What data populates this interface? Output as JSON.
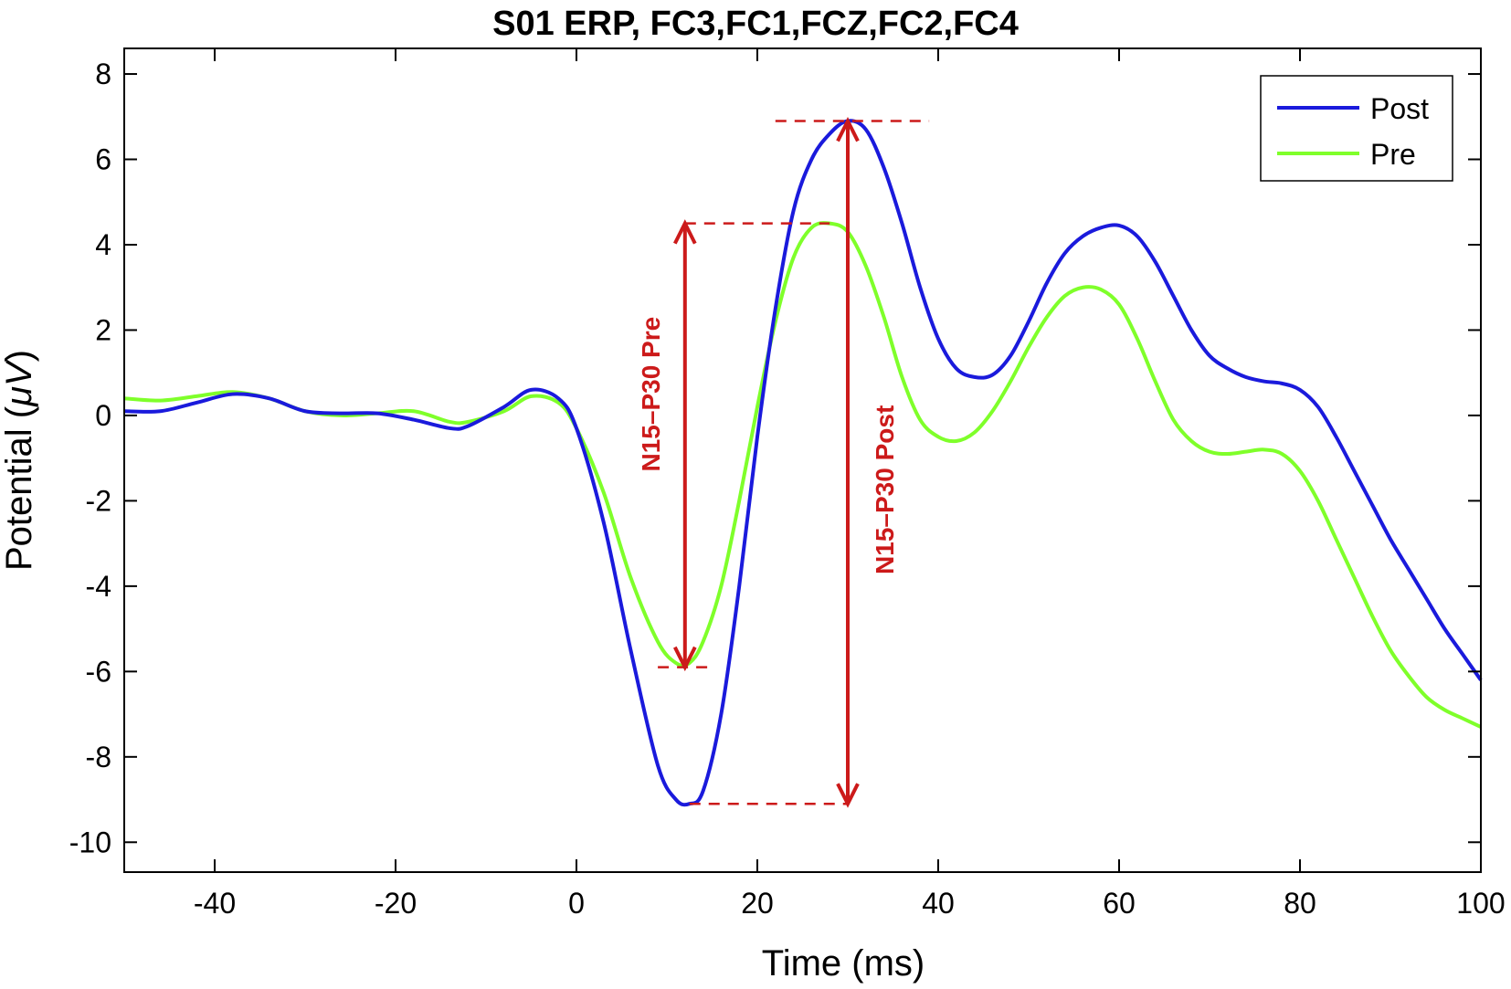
{
  "chart_data": {
    "type": "line",
    "title": "S01 ERP, FC3,FC1,FCZ,FC2,FC4",
    "xlabel": "Time (ms)",
    "ylabel_main": "Potential (",
    "ylabel_unit": "μV",
    "ylabel_close": ")",
    "xlim": [
      -50,
      100
    ],
    "ylim": [
      -10.7,
      8.6
    ],
    "xticks": [
      -40,
      -20,
      0,
      20,
      40,
      60,
      80,
      100
    ],
    "yticks": [
      8,
      6,
      4,
      2,
      0,
      -2,
      -4,
      -6,
      -8,
      -10
    ],
    "grid": false,
    "legend_position": "top-right",
    "series": [
      {
        "name": "Post",
        "color": "#1a1adc",
        "x": [
          -50,
          -46,
          -42,
          -38,
          -34,
          -30,
          -26,
          -22,
          -18,
          -14,
          -12,
          -8,
          -5,
          -2,
          0,
          3,
          6,
          9,
          11,
          12.5,
          14,
          16,
          18,
          20,
          22,
          24,
          26,
          28,
          30,
          32,
          34,
          36,
          38,
          40,
          42,
          44,
          46,
          48,
          50,
          52,
          54,
          56,
          58,
          60,
          62,
          64,
          66,
          68,
          70,
          72,
          74,
          76,
          78,
          80,
          82,
          84,
          86,
          88,
          90,
          92,
          94,
          96,
          98,
          100
        ],
        "y": [
          0.1,
          0.1,
          0.3,
          0.5,
          0.4,
          0.1,
          0.05,
          0.05,
          -0.1,
          -0.3,
          -0.25,
          0.2,
          0.6,
          0.4,
          -0.3,
          -2.5,
          -5.5,
          -8.2,
          -9.0,
          -9.1,
          -8.8,
          -7.0,
          -4.0,
          -0.5,
          2.5,
          4.8,
          6.0,
          6.6,
          6.9,
          6.7,
          5.8,
          4.5,
          3.0,
          1.8,
          1.1,
          0.9,
          0.95,
          1.4,
          2.2,
          3.1,
          3.8,
          4.2,
          4.4,
          4.45,
          4.2,
          3.6,
          2.8,
          2.0,
          1.4,
          1.1,
          0.9,
          0.8,
          0.75,
          0.6,
          0.2,
          -0.5,
          -1.3,
          -2.1,
          -2.9,
          -3.6,
          -4.3,
          -5.0,
          -5.6,
          -6.2
        ]
      },
      {
        "name": "Pre",
        "color": "#7fff2a",
        "x": [
          -50,
          -46,
          -42,
          -38,
          -34,
          -30,
          -26,
          -22,
          -18,
          -14,
          -12,
          -8,
          -5,
          -2,
          0,
          3,
          6,
          9,
          11,
          12.5,
          14,
          16,
          18,
          20,
          22,
          24,
          26,
          28,
          30,
          32,
          34,
          36,
          38,
          40,
          42,
          44,
          46,
          48,
          50,
          52,
          54,
          56,
          58,
          60,
          62,
          64,
          66,
          68,
          70,
          72,
          74,
          76,
          78,
          80,
          82,
          84,
          86,
          88,
          90,
          92,
          94,
          96,
          98,
          100
        ],
        "y": [
          0.4,
          0.35,
          0.45,
          0.55,
          0.4,
          0.1,
          0.0,
          0.05,
          0.1,
          -0.15,
          -0.15,
          0.1,
          0.45,
          0.3,
          -0.3,
          -1.8,
          -3.8,
          -5.3,
          -5.8,
          -5.8,
          -5.3,
          -4.0,
          -2.0,
          0.2,
          2.2,
          3.7,
          4.4,
          4.5,
          4.3,
          3.5,
          2.3,
          0.9,
          -0.1,
          -0.5,
          -0.6,
          -0.4,
          0.1,
          0.8,
          1.6,
          2.3,
          2.8,
          3.0,
          2.95,
          2.6,
          1.8,
          0.8,
          -0.1,
          -0.6,
          -0.85,
          -0.9,
          -0.85,
          -0.8,
          -0.9,
          -1.3,
          -2.0,
          -2.9,
          -3.8,
          -4.7,
          -5.5,
          -6.1,
          -6.6,
          -6.9,
          -7.1,
          -7.3
        ]
      }
    ],
    "annotations": {
      "color": "#cc1a1a",
      "pre_label": "N15–P30  Pre",
      "post_label": "N15–P30  Post",
      "pre_arrow": {
        "x": 12,
        "y_from": -5.9,
        "y_to": 4.5
      },
      "post_arrow": {
        "x": 30,
        "y_from": -9.1,
        "y_to": 6.9
      },
      "dashed_lines": [
        {
          "y": 6.9,
          "x_from": 22,
          "x_to": 39
        },
        {
          "y": 4.5,
          "x_from": 12,
          "x_to": 28
        },
        {
          "y": -5.9,
          "x_from": 9,
          "x_to": 15
        },
        {
          "y": -9.1,
          "x_from": 12.5,
          "x_to": 30
        }
      ]
    }
  }
}
